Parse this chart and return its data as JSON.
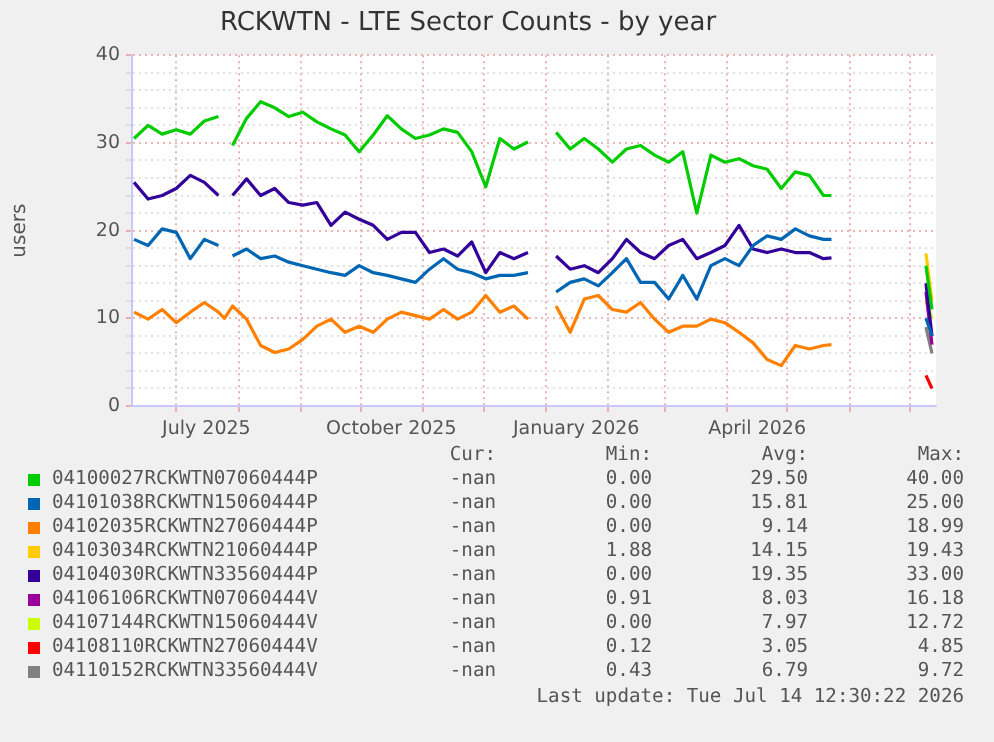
{
  "chart_data": {
    "type": "line",
    "title": "RCKWTN - LTE Sector Counts - by year",
    "ylabel": "users",
    "x": [
      "2025-06-10",
      "2025-06-17",
      "2025-06-24",
      "2025-07-01",
      "2025-07-08",
      "2025-07-15",
      "2025-07-22",
      "2025-07-25",
      "2025-07-29",
      "2025-08-05",
      "2025-08-12",
      "2025-08-19",
      "2025-08-26",
      "2025-09-02",
      "2025-09-09",
      "2025-09-16",
      "2025-09-23",
      "2025-09-30",
      "2025-10-07",
      "2025-10-14",
      "2025-10-21",
      "2025-10-28",
      "2025-11-04",
      "2025-11-11",
      "2025-11-18",
      "2025-11-25",
      "2025-12-02",
      "2025-12-09",
      "2025-12-16",
      "2025-12-23",
      "2025-12-30",
      "2026-01-06",
      "2026-01-13",
      "2026-01-20",
      "2026-01-27",
      "2026-02-03",
      "2026-02-10",
      "2026-02-17",
      "2026-02-24",
      "2026-03-03",
      "2026-03-10",
      "2026-03-17",
      "2026-03-24",
      "2026-03-31",
      "2026-04-07",
      "2026-04-14",
      "2026-04-21",
      "2026-04-28",
      "2026-05-05",
      "2026-05-12",
      "2026-05-19",
      "2026-05-23",
      "2026-06-15",
      "2026-07-09",
      "2026-07-12"
    ],
    "series": [
      {
        "name": "04100027RCKWTN07060444P",
        "color": "#00cc00",
        "values": [
          30.5,
          32,
          31,
          31.5,
          31,
          32.5,
          33,
          null,
          29.7,
          32.8,
          34.7,
          34,
          33,
          33.5,
          32.4,
          31.6,
          30.9,
          29,
          30.9,
          33.1,
          31.6,
          30.5,
          30.9,
          31.6,
          31.2,
          29,
          25,
          30.5,
          29.3,
          30.1,
          null,
          31.2,
          29.3,
          30.5,
          29.3,
          27.8,
          29.3,
          29.7,
          28.6,
          27.8,
          29,
          22,
          28.6,
          27.8,
          28.2,
          27.4,
          27,
          24.8,
          26.7,
          26.3,
          24,
          24,
          null,
          16,
          11
        ]
      },
      {
        "name": "04101038RCKWTN15060444P",
        "color": "#0066b3",
        "values": [
          19,
          18.3,
          20.2,
          19.8,
          16.8,
          19,
          18.3,
          null,
          17.1,
          17.9,
          16.8,
          17.1,
          16.4,
          16,
          15.6,
          15.2,
          14.9,
          16,
          15.2,
          14.9,
          14.5,
          14.1,
          15.6,
          16.8,
          15.6,
          15.2,
          14.5,
          14.9,
          14.9,
          15.2,
          null,
          13,
          14.1,
          14.5,
          13.7,
          15.2,
          16.8,
          14.1,
          14.1,
          12.2,
          14.9,
          12.2,
          16,
          16.8,
          16,
          18.3,
          19.4,
          19,
          20.2,
          19.4,
          19,
          19,
          null,
          10,
          8
        ]
      },
      {
        "name": "04102035RCKWTN27060444P",
        "color": "#ff8000",
        "values": [
          10.7,
          9.9,
          11,
          9.5,
          10.7,
          11.8,
          10.7,
          10,
          11.4,
          9.9,
          6.9,
          6.1,
          6.5,
          7.6,
          9.1,
          9.9,
          8.4,
          9.1,
          8.4,
          9.9,
          10.7,
          10.3,
          9.9,
          11,
          9.9,
          10.7,
          12.6,
          10.7,
          11.4,
          9.9,
          null,
          11.4,
          8.4,
          12.2,
          12.6,
          11,
          10.7,
          11.8,
          9.9,
          8.4,
          9.1,
          9.1,
          9.9,
          9.5,
          8.4,
          7.2,
          5.3,
          4.6,
          6.9,
          6.5,
          6.9,
          7,
          null,
          null,
          null
        ]
      },
      {
        "name": "04103034RCKWTN21060444P",
        "color": "#ffcc00",
        "values": [
          null,
          null,
          null,
          null,
          null,
          null,
          null,
          null,
          null,
          null,
          null,
          null,
          null,
          null,
          null,
          null,
          null,
          null,
          null,
          null,
          null,
          null,
          null,
          null,
          null,
          null,
          null,
          null,
          null,
          null,
          null,
          null,
          null,
          null,
          null,
          null,
          null,
          null,
          null,
          null,
          null,
          null,
          null,
          null,
          null,
          null,
          null,
          null,
          null,
          null,
          null,
          null,
          null,
          17.4,
          12
        ]
      },
      {
        "name": "04104030RCKWTN33560444P",
        "color": "#330099",
        "values": [
          25.5,
          23.6,
          24,
          24.8,
          26.3,
          25.5,
          24,
          null,
          24,
          25.9,
          24,
          24.8,
          23.2,
          22.9,
          23.2,
          20.6,
          22.1,
          21.3,
          20.6,
          19,
          19.8,
          19.8,
          17.5,
          17.9,
          17.1,
          18.7,
          15.2,
          17.5,
          16.8,
          17.5,
          null,
          17.1,
          15.6,
          16,
          15.2,
          16.8,
          19,
          17.5,
          16.8,
          18.3,
          19,
          16.8,
          17.5,
          18.3,
          20.6,
          17.9,
          17.5,
          17.9,
          17.5,
          17.5,
          16.8,
          16.9,
          null,
          14,
          8
        ]
      },
      {
        "name": "04106106RCKWTN07060444V",
        "color": "#990099",
        "values": [
          null,
          null,
          null,
          null,
          null,
          null,
          null,
          null,
          null,
          null,
          null,
          null,
          null,
          null,
          null,
          null,
          null,
          null,
          null,
          null,
          null,
          null,
          null,
          null,
          null,
          null,
          null,
          null,
          null,
          null,
          null,
          null,
          null,
          null,
          null,
          null,
          null,
          null,
          null,
          null,
          null,
          null,
          null,
          null,
          null,
          null,
          null,
          null,
          null,
          null,
          null,
          null,
          null,
          13,
          7
        ]
      },
      {
        "name": "04107144RCKWTN15060444V",
        "color": "#ccff00",
        "values": [
          null,
          null,
          null,
          null,
          null,
          null,
          null,
          null,
          null,
          null,
          null,
          null,
          null,
          null,
          null,
          null,
          null,
          null,
          null,
          null,
          null,
          null,
          null,
          null,
          null,
          null,
          null,
          null,
          null,
          null,
          null,
          null,
          null,
          null,
          null,
          null,
          null,
          null,
          null,
          null,
          null,
          null,
          null,
          null,
          null,
          null,
          null,
          null,
          null,
          null,
          null,
          null,
          null,
          12,
          10
        ]
      },
      {
        "name": "04108110RCKWTN27060444V",
        "color": "#ff0000",
        "values": [
          null,
          null,
          null,
          null,
          null,
          null,
          null,
          null,
          null,
          null,
          null,
          null,
          null,
          null,
          null,
          null,
          null,
          null,
          null,
          null,
          null,
          null,
          null,
          null,
          null,
          null,
          null,
          null,
          null,
          null,
          null,
          null,
          null,
          null,
          null,
          null,
          null,
          null,
          null,
          null,
          null,
          null,
          null,
          null,
          null,
          null,
          null,
          null,
          null,
          null,
          null,
          null,
          null,
          3.5,
          2
        ]
      },
      {
        "name": "04110152RCKWTN33560444V",
        "color": "#808080",
        "values": [
          null,
          null,
          null,
          null,
          null,
          null,
          null,
          null,
          null,
          null,
          null,
          null,
          null,
          null,
          null,
          null,
          null,
          null,
          null,
          null,
          null,
          null,
          null,
          null,
          null,
          null,
          null,
          null,
          null,
          null,
          null,
          null,
          null,
          null,
          null,
          null,
          null,
          null,
          null,
          null,
          null,
          null,
          null,
          null,
          null,
          null,
          null,
          null,
          null,
          null,
          null,
          null,
          null,
          9,
          6
        ]
      }
    ],
    "xlim": [
      "2025-06-09",
      "2026-07-14"
    ],
    "xticks": [
      {
        "value": "2025-07-01",
        "label": null
      },
      {
        "value": "2025-07-16",
        "label": "July 2025"
      },
      {
        "value": "2025-08-01",
        "label": null
      },
      {
        "value": "2025-09-01",
        "label": null
      },
      {
        "value": "2025-10-01",
        "label": null
      },
      {
        "value": "2025-10-16",
        "label": "October 2025"
      },
      {
        "value": "2025-11-01",
        "label": null
      },
      {
        "value": "2025-12-01",
        "label": null
      },
      {
        "value": "2026-01-01",
        "label": null
      },
      {
        "value": "2026-01-16",
        "label": "January 2026"
      },
      {
        "value": "2026-02-01",
        "label": null
      },
      {
        "value": "2026-03-01",
        "label": null
      },
      {
        "value": "2026-04-01",
        "label": null
      },
      {
        "value": "2026-04-16",
        "label": "April 2026"
      },
      {
        "value": "2026-05-01",
        "label": null
      },
      {
        "value": "2026-06-01",
        "label": null
      },
      {
        "value": "2026-07-01",
        "label": null
      }
    ],
    "ylim": [
      0,
      40
    ],
    "yticks": [
      0,
      {
        "value": 2,
        "label": null
      },
      {
        "value": 4,
        "label": null
      },
      {
        "value": 6,
        "label": null
      },
      {
        "value": 8,
        "label": null
      },
      10,
      {
        "value": 12,
        "label": null
      },
      {
        "value": 14,
        "label": null
      },
      {
        "value": 16,
        "label": null
      },
      {
        "value": 18,
        "label": null
      },
      20,
      {
        "value": 22,
        "label": null
      },
      {
        "value": 24,
        "label": null
      },
      {
        "value": 26,
        "label": null
      },
      {
        "value": 28,
        "label": null
      },
      30,
      {
        "value": 32,
        "label": null
      },
      {
        "value": 34,
        "label": null
      },
      {
        "value": 36,
        "label": null
      },
      {
        "value": 38,
        "label": null
      },
      40
    ],
    "grid": true,
    "legend": "bottom",
    "annotations": [
      "Cur:",
      "Min:",
      "Avg:",
      "Max:",
      "-nan",
      "0.00",
      "29.50",
      "40.00",
      "-nan",
      "0.00",
      "15.81",
      "25.00",
      "-nan",
      "0.00",
      "9.14",
      "18.99",
      "-nan",
      "1.88",
      "14.15",
      "19.43",
      "-nan",
      "0.00",
      "19.35",
      "33.00",
      "-nan",
      "0.91",
      "8.03",
      "16.18",
      "-nan",
      "0.00",
      "7.97",
      "12.72",
      "-nan",
      "0.12",
      "3.05",
      "4.85",
      "-nan",
      "0.43",
      "6.79",
      "9.72",
      "Last update: Tue Jul 14 12:30:22 2026"
    ]
  }
}
